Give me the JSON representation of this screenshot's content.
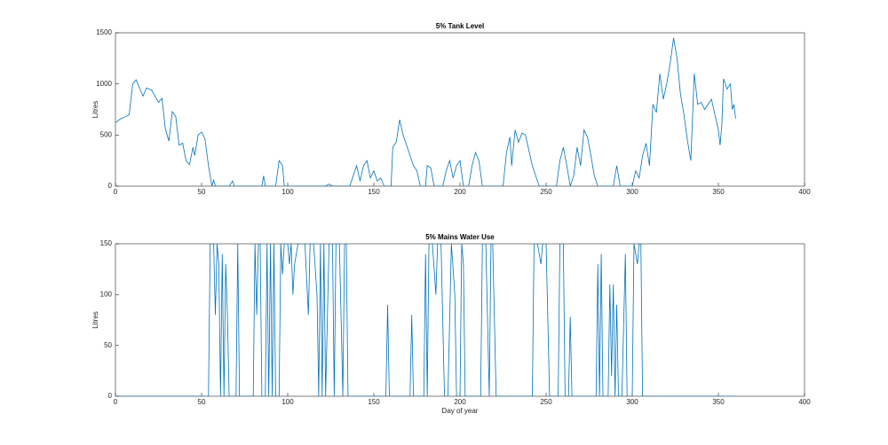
{
  "chart_data": [
    {
      "type": "line",
      "title": "5% Tank Level",
      "y_label": "Litres",
      "xlim": [
        0,
        400
      ],
      "xticks": [
        0,
        50,
        100,
        150,
        200,
        250,
        300,
        350,
        400
      ],
      "ylim": [
        0,
        1500
      ],
      "yticks": [
        0,
        500,
        1000,
        1500
      ],
      "grid": false,
      "series": [
        {
          "color": "#0072bd",
          "x": [
            0,
            3,
            6,
            8,
            10,
            12,
            14,
            16,
            18,
            21,
            23,
            25,
            27,
            29,
            31,
            33,
            35,
            37,
            39,
            41,
            43,
            45,
            46,
            48,
            50,
            52,
            54,
            56,
            57,
            58,
            66,
            68,
            69,
            85,
            86,
            87,
            93,
            95,
            97,
            98,
            122,
            124,
            126,
            136,
            138,
            140,
            142,
            144,
            146,
            148,
            150,
            152,
            154,
            156,
            160,
            161,
            163,
            165,
            167,
            169,
            171,
            173,
            175,
            177,
            180,
            181,
            183,
            185,
            190,
            192,
            194,
            196,
            198,
            200,
            202,
            205,
            207,
            209,
            211,
            213,
            225,
            227,
            229,
            230,
            232,
            234,
            236,
            238,
            240,
            242,
            244,
            246,
            256,
            258,
            260,
            262,
            264,
            266,
            268,
            270,
            272,
            274,
            276,
            278,
            280,
            289,
            291,
            293,
            300,
            302,
            304,
            306,
            308,
            310,
            312,
            314,
            316,
            318,
            320,
            322,
            324,
            326,
            328,
            330,
            332,
            334,
            336,
            338,
            340,
            342,
            344,
            346,
            348,
            350,
            351,
            352,
            353,
            355,
            357,
            358,
            359,
            360
          ],
          "values": [
            620,
            660,
            680,
            700,
            1000,
            1040,
            960,
            880,
            960,
            940,
            880,
            820,
            860,
            560,
            440,
            730,
            680,
            400,
            420,
            250,
            210,
            380,
            300,
            500,
            530,
            460,
            200,
            0,
            60,
            0,
            0,
            50,
            0,
            0,
            100,
            0,
            0,
            250,
            200,
            0,
            0,
            20,
            0,
            0,
            100,
            200,
            50,
            200,
            250,
            80,
            150,
            50,
            80,
            0,
            0,
            380,
            430,
            650,
            500,
            400,
            300,
            200,
            150,
            0,
            0,
            200,
            180,
            0,
            0,
            150,
            250,
            80,
            200,
            250,
            0,
            0,
            200,
            330,
            250,
            0,
            0,
            330,
            480,
            200,
            550,
            430,
            520,
            500,
            350,
            200,
            100,
            0,
            0,
            250,
            380,
            200,
            0,
            100,
            380,
            200,
            550,
            480,
            300,
            100,
            0,
            0,
            200,
            0,
            0,
            150,
            80,
            300,
            420,
            200,
            800,
            720,
            1100,
            850,
            1000,
            1200,
            1450,
            1250,
            900,
            700,
            450,
            250,
            1100,
            800,
            820,
            750,
            800,
            850,
            700,
            550,
            400,
            600,
            1050,
            950,
            1000,
            750,
            800,
            660
          ]
        }
      ]
    },
    {
      "type": "line",
      "title": "5% Mains Water Use",
      "y_label": "Litres",
      "x_label": "Day of year",
      "xlim": [
        0,
        400
      ],
      "xticks": [
        0,
        50,
        100,
        150,
        200,
        250,
        300,
        350,
        400
      ],
      "ylim": [
        0,
        150
      ],
      "yticks": [
        0,
        50,
        100,
        150
      ],
      "grid": false,
      "series": [
        {
          "color": "#0072bd",
          "x": [
            0,
            54,
            55,
            57,
            58,
            59,
            60,
            61,
            62,
            63,
            64,
            65,
            66,
            70,
            71,
            72,
            80,
            81,
            82,
            83,
            84,
            85,
            87,
            88,
            89,
            90,
            91,
            92,
            93,
            95,
            96,
            97,
            98,
            100,
            101,
            102,
            103,
            104,
            106,
            110,
            112,
            113,
            115,
            117,
            118,
            119,
            120,
            121,
            122,
            124,
            126,
            127,
            128,
            130,
            132,
            133,
            134,
            135,
            157,
            158,
            159,
            171,
            172,
            173,
            179,
            180,
            181,
            182,
            184,
            186,
            187,
            189,
            191,
            193,
            195,
            197,
            198,
            200,
            201,
            202,
            203,
            212,
            213,
            215,
            217,
            218,
            219,
            221,
            242,
            243,
            245,
            247,
            248,
            250,
            252,
            257,
            258,
            260,
            261,
            263,
            264,
            265,
            279,
            280,
            281,
            282,
            283,
            286,
            287,
            288,
            289,
            290,
            291,
            292,
            294,
            296,
            297,
            300,
            301,
            303,
            304,
            305,
            306,
            360
          ],
          "values": [
            0,
            0,
            150,
            150,
            80,
            150,
            130,
            0,
            140,
            0,
            130,
            80,
            0,
            0,
            150,
            0,
            0,
            150,
            80,
            150,
            150,
            0,
            0,
            150,
            0,
            150,
            0,
            150,
            0,
            0,
            150,
            120,
            150,
            150,
            130,
            150,
            100,
            130,
            150,
            150,
            80,
            150,
            150,
            100,
            0,
            150,
            0,
            150,
            0,
            150,
            150,
            0,
            150,
            150,
            0,
            150,
            150,
            0,
            0,
            90,
            0,
            0,
            80,
            0,
            0,
            140,
            0,
            150,
            150,
            100,
            150,
            150,
            0,
            0,
            150,
            100,
            0,
            0,
            150,
            130,
            0,
            0,
            150,
            150,
            0,
            150,
            150,
            0,
            0,
            150,
            150,
            130,
            150,
            150,
            0,
            0,
            150,
            150,
            0,
            0,
            78,
            0,
            0,
            130,
            0,
            140,
            0,
            0,
            110,
            20,
            110,
            0,
            90,
            0,
            0,
            140,
            0,
            0,
            150,
            130,
            150,
            150,
            0,
            0
          ]
        }
      ]
    }
  ]
}
